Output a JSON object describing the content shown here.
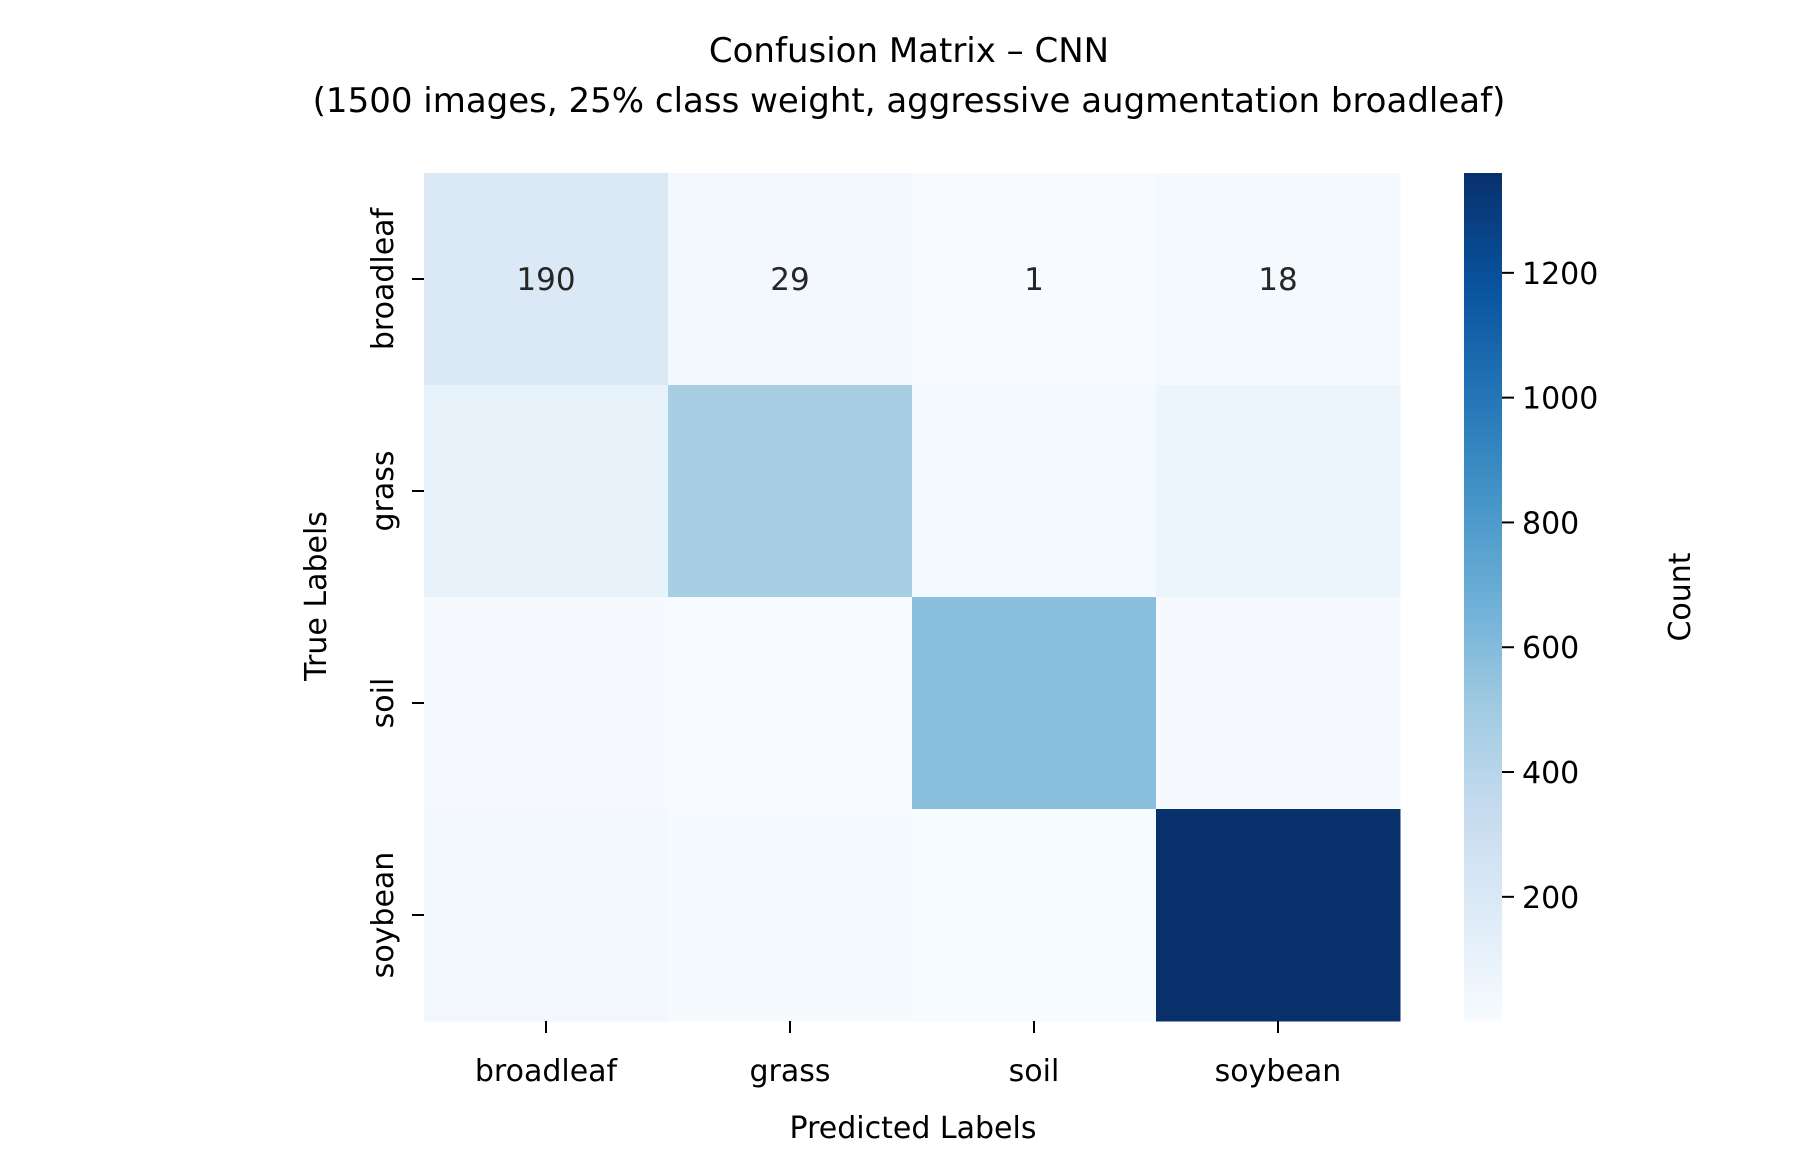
{
  "chart_data": {
    "type": "heatmap",
    "title": "Confusion Matrix – CNN",
    "subtitle": "(1500 images, 25% class weight, aggressive augmentation broadleaf)",
    "xlabel": "Predicted Labels",
    "ylabel": "True Labels",
    "x_categories": [
      "broadleaf",
      "grass",
      "soil",
      "soybean"
    ],
    "y_categories": [
      "broadleaf",
      "grass",
      "soil",
      "soybean"
    ],
    "values": [
      [
        190,
        29,
        1,
        18
      ],
      [
        100,
        470,
        20,
        70
      ],
      [
        8,
        3,
        580,
        10
      ],
      [
        45,
        15,
        6,
        1360
      ]
    ],
    "annotations": [
      [
        "190",
        "29",
        "1",
        "18"
      ],
      [
        "",
        "",
        "",
        ""
      ],
      [
        "",
        "",
        "",
        ""
      ],
      [
        "",
        "",
        "",
        ""
      ]
    ],
    "colormap": "Blues",
    "colorbar": {
      "label": "Count",
      "range": [
        1,
        1360
      ],
      "ticks": [
        200,
        400,
        600,
        800,
        1000,
        1200
      ]
    },
    "colors": {
      "annotation_text": "#262626"
    }
  }
}
